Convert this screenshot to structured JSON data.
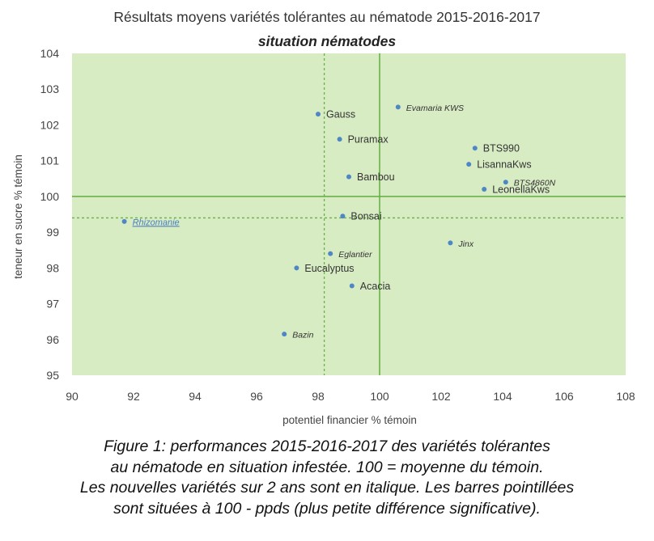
{
  "chart_data": {
    "type": "scatter",
    "title": "Résultats moyens variétés tolérantes au nématode 2015-2016-2017",
    "subtitle": "situation nématodes",
    "xlabel": "potentiel financier % témoin",
    "ylabel": "teneur en sucre % témoin",
    "xlim": [
      90,
      108
    ],
    "ylim": [
      95,
      104
    ],
    "x_ticks": [
      "90",
      "92",
      "94",
      "96",
      "98",
      "100",
      "102",
      "104",
      "106",
      "108"
    ],
    "y_ticks": [
      "95",
      "96",
      "97",
      "98",
      "99",
      "100",
      "101",
      "102",
      "103",
      "104"
    ],
    "grid": false,
    "reference_lines": {
      "solid": {
        "x": 100,
        "y": 100
      },
      "dashed": {
        "x": 98.2,
        "y": 99.4
      }
    },
    "colors": {
      "background": "#d8ecc4",
      "points": "#4f86c6",
      "reference_lines": "#6ab04a"
    },
    "points": [
      {
        "label": "Gauss",
        "x": 98.0,
        "y": 102.3,
        "italic": false
      },
      {
        "label": "Evamaria KWS",
        "x": 100.6,
        "y": 102.5,
        "italic": true
      },
      {
        "label": "Puramax",
        "x": 98.7,
        "y": 101.6,
        "italic": false
      },
      {
        "label": "BTS990",
        "x": 103.1,
        "y": 101.35,
        "italic": false
      },
      {
        "label": "LisannaKws",
        "x": 102.9,
        "y": 100.9,
        "italic": false
      },
      {
        "label": "Bambou",
        "x": 99.0,
        "y": 100.55,
        "italic": false
      },
      {
        "label": "BTS4860N",
        "x": 104.1,
        "y": 100.4,
        "italic": true
      },
      {
        "label": "LeonellaKws",
        "x": 103.4,
        "y": 100.2,
        "italic": false
      },
      {
        "label": "Bonsai",
        "x": 98.8,
        "y": 99.45,
        "italic": false
      },
      {
        "label": "Rhizomanie",
        "x": 91.7,
        "y": 99.3,
        "italic": true,
        "underline": true
      },
      {
        "label": "Jinx",
        "x": 102.3,
        "y": 98.7,
        "italic": true
      },
      {
        "label": "Eglantier",
        "x": 98.4,
        "y": 98.4,
        "italic": true
      },
      {
        "label": "Eucalyptus",
        "x": 97.3,
        "y": 98.0,
        "italic": false
      },
      {
        "label": "Acacia",
        "x": 99.1,
        "y": 97.5,
        "italic": false
      },
      {
        "label": "Bazin",
        "x": 96.9,
        "y": 96.15,
        "italic": true
      }
    ]
  },
  "caption": {
    "line1": "Figure 1: performances 2015-2016-2017 des variétés tolérantes",
    "line2": "au nématode en situation infestée. 100 = moyenne du témoin.",
    "line3": "Les nouvelles variétés sur 2 ans sont en italique. Les barres pointillées",
    "line4": "sont situées à 100 - ppds (plus petite différence significative)."
  }
}
